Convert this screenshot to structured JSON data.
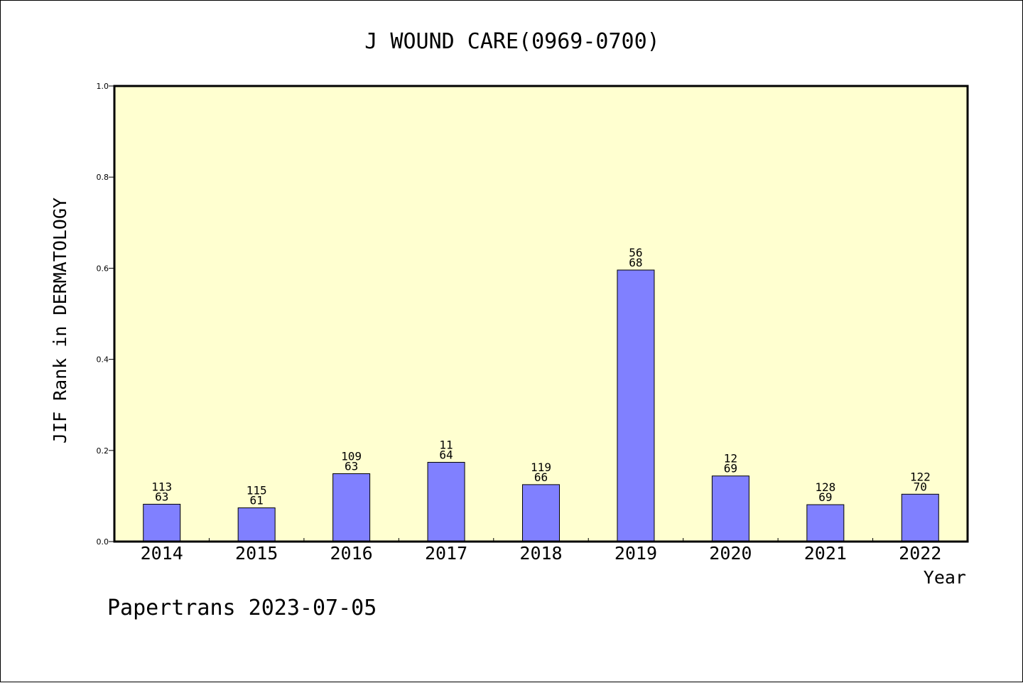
{
  "chart_data": {
    "type": "bar",
    "title": "J WOUND CARE(0969-0700)",
    "xlabel": "Year",
    "ylabel": "JIF Rank in DERMATOLOGY",
    "categories": [
      "2014",
      "2015",
      "2016",
      "2017",
      "2018",
      "2019",
      "2020",
      "2021",
      "2022"
    ],
    "values": [
      0.082,
      0.074,
      0.149,
      0.174,
      0.125,
      0.596,
      0.144,
      0.081,
      0.104
    ],
    "bar_labels": [
      [
        "113",
        "63"
      ],
      [
        "115",
        "61"
      ],
      [
        "109",
        "63"
      ],
      [
        "11",
        "64"
      ],
      [
        "119",
        "66"
      ],
      [
        "56",
        "68"
      ],
      [
        "12",
        "69"
      ],
      [
        "128",
        "69"
      ],
      [
        "122",
        "70"
      ]
    ],
    "ylim": [
      0,
      1.0
    ],
    "yticks": [
      "0.0",
      "0.2",
      "0.4",
      "0.6",
      "0.8",
      "1.0"
    ],
    "grid": false,
    "colors": {
      "bar": "#8080ff",
      "plot_background": "#ffffd0",
      "axis": "#000000"
    }
  },
  "footer": "Papertrans 2023-07-05"
}
